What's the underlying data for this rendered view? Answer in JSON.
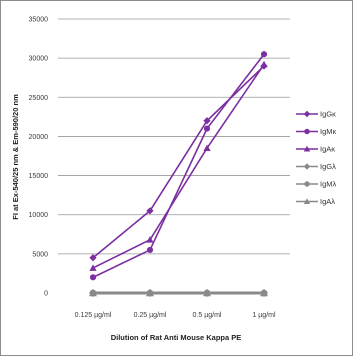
{
  "chart_data": {
    "type": "line",
    "title": "",
    "xlabel": "Dilution of Rat Anti Mouse Kappa PE",
    "ylabel": "FI at Ex-540/25 nm & Em-590/20 nm",
    "categories": [
      "0.125 µg/ml",
      "0.25 µg/ml",
      "0.5 µg/ml",
      "1 µg/ml"
    ],
    "ylim": [
      0,
      35000
    ],
    "yticks": [
      "0",
      "5000",
      "10000",
      "15000",
      "20000",
      "25000",
      "30000",
      "35000"
    ],
    "grid": true,
    "legend_position": "right",
    "series": [
      {
        "name": "IgGκ",
        "marker": "diamond",
        "color": "#7b2fa0",
        "values": [
          4500,
          10500,
          22000,
          29000
        ]
      },
      {
        "name": "IgMκ",
        "marker": "circle",
        "color": "#7b2fa0",
        "values": [
          2000,
          5500,
          21000,
          30500
        ]
      },
      {
        "name": "IgAκ",
        "marker": "triangle",
        "color": "#7b2fa0",
        "values": [
          3200,
          6800,
          18500,
          29200
        ]
      },
      {
        "name": "IgGλ",
        "marker": "diamond",
        "color": "#8a8a8a",
        "values": [
          0,
          0,
          0,
          0
        ]
      },
      {
        "name": "IgMλ",
        "marker": "circle",
        "color": "#8a8a8a",
        "values": [
          0,
          0,
          0,
          0
        ]
      },
      {
        "name": "IgAλ",
        "marker": "triangle",
        "color": "#8a8a8a",
        "values": [
          0,
          0,
          0,
          0
        ]
      }
    ]
  }
}
